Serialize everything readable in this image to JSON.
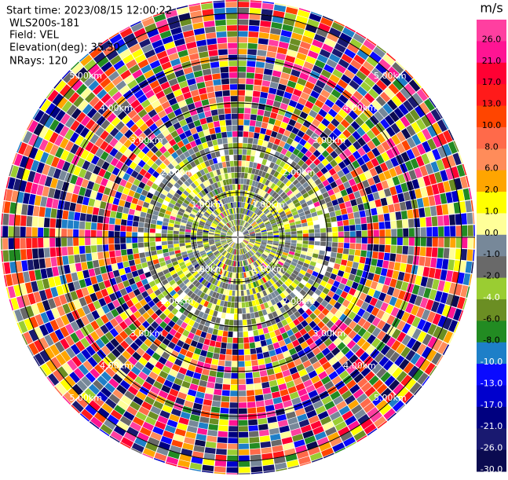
{
  "header": {
    "start_time": "Start time: 2023/08/15 12:00:22",
    "instrument": "WLS200s-181",
    "field": "Field: VEL",
    "elevation": "Elevation(deg): 35.30",
    "nrays": "NRays: 120"
  },
  "range_rings": [
    "1.00km",
    "2.00km",
    "3.00km",
    "4.00km",
    "5.00km"
  ],
  "colorbar": {
    "unit": "m/s",
    "labels": [
      "26.0",
      "21.0",
      "17.0",
      "13.0",
      "10.0",
      "8.0",
      "6.0",
      "2.0",
      "1.0",
      "0.0",
      "-1.0",
      "-2.0",
      "-4.0",
      "-6.0",
      "-8.0",
      "-10.0",
      "-13.0",
      "-17.0",
      "-21.0",
      "-26.0",
      "-30.0"
    ],
    "colors": [
      "#ff3fa0",
      "#ff1493",
      "#ff0033",
      "#ff1a1a",
      "#ff4500",
      "#ff6a4a",
      "#ff8c5a",
      "#ffa500",
      "#ffff00",
      "#ffff99",
      "#778899",
      "#696969",
      "#9acd32",
      "#6b8e23",
      "#228b22",
      "#1e7fc8",
      "#0a0aff",
      "#0000cd",
      "#000080",
      "#191970",
      "#0b0b50"
    ]
  }
}
